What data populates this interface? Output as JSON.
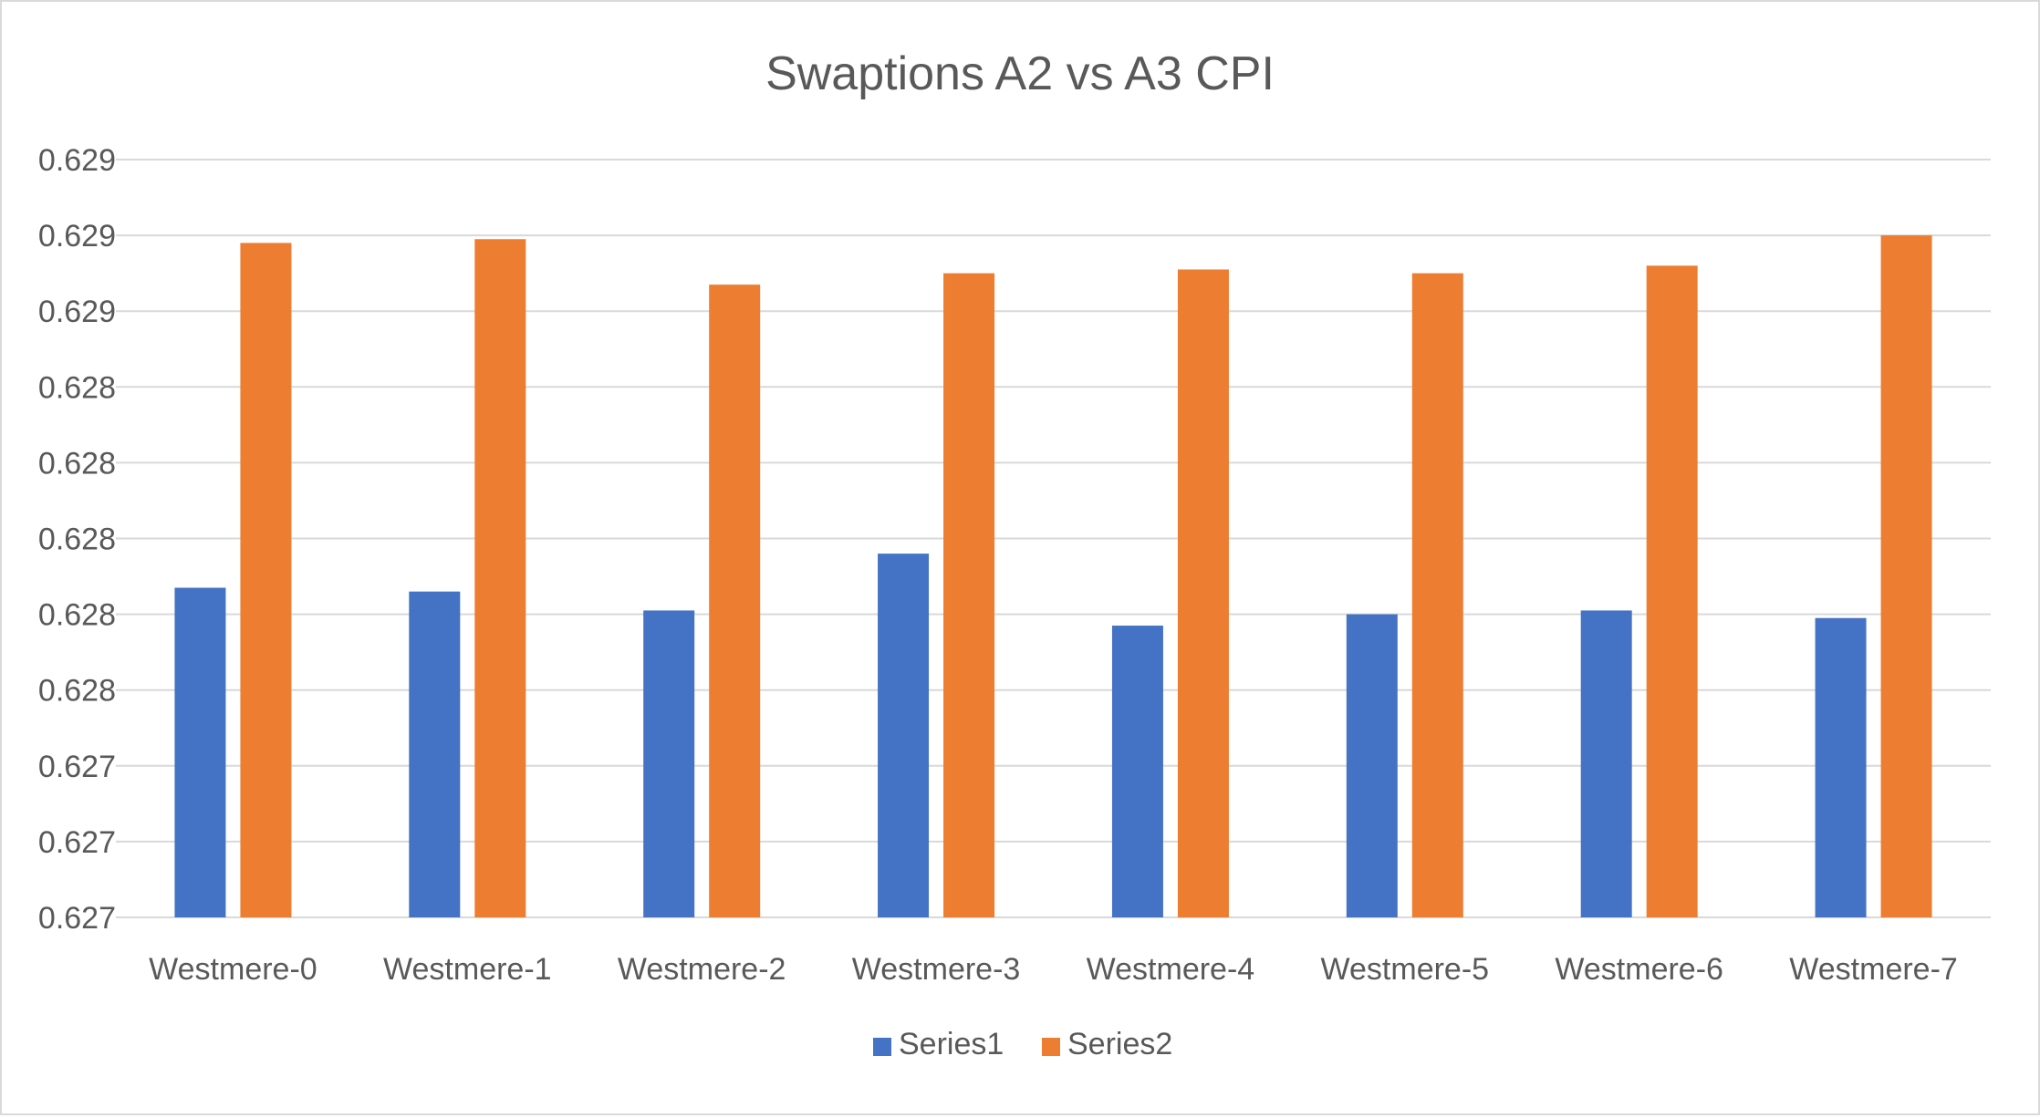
{
  "chart_data": {
    "type": "bar",
    "title": "Swaptions A2 vs A3 CPI",
    "xlabel": "",
    "ylabel": "",
    "categories": [
      "Westmere-0",
      "Westmere-1",
      "Westmere-2",
      "Westmere-3",
      "Westmere-4",
      "Westmere-5",
      "Westmere-6",
      "Westmere-7"
    ],
    "series": [
      {
        "name": "Series1",
        "color": "#4472c4",
        "values": [
          0.62787,
          0.62786,
          0.62781,
          0.62796,
          0.62777,
          0.6278,
          0.62781,
          0.62779
        ]
      },
      {
        "name": "Series2",
        "color": "#ed7d31",
        "values": [
          0.62878,
          0.62879,
          0.62867,
          0.6287,
          0.62871,
          0.6287,
          0.62872,
          0.6288
        ]
      }
    ],
    "ylim": [
      0.627,
      0.629
    ],
    "yticks": [
      0.627,
      0.6272,
      0.6274,
      0.6276,
      0.6278,
      0.628,
      0.6282,
      0.6284,
      0.6286,
      0.6288,
      0.629
    ],
    "ytick_labels": [
      "0.627",
      "0.627",
      "0.627",
      "0.628",
      "0.628",
      "0.628",
      "0.628",
      "0.628",
      "0.629",
      "0.629",
      "0.629"
    ],
    "grid": true,
    "legend_position": "bottom",
    "colors": {
      "gridline": "#d9d9d9",
      "axis_text": "#595959",
      "title_text": "#595959"
    }
  }
}
